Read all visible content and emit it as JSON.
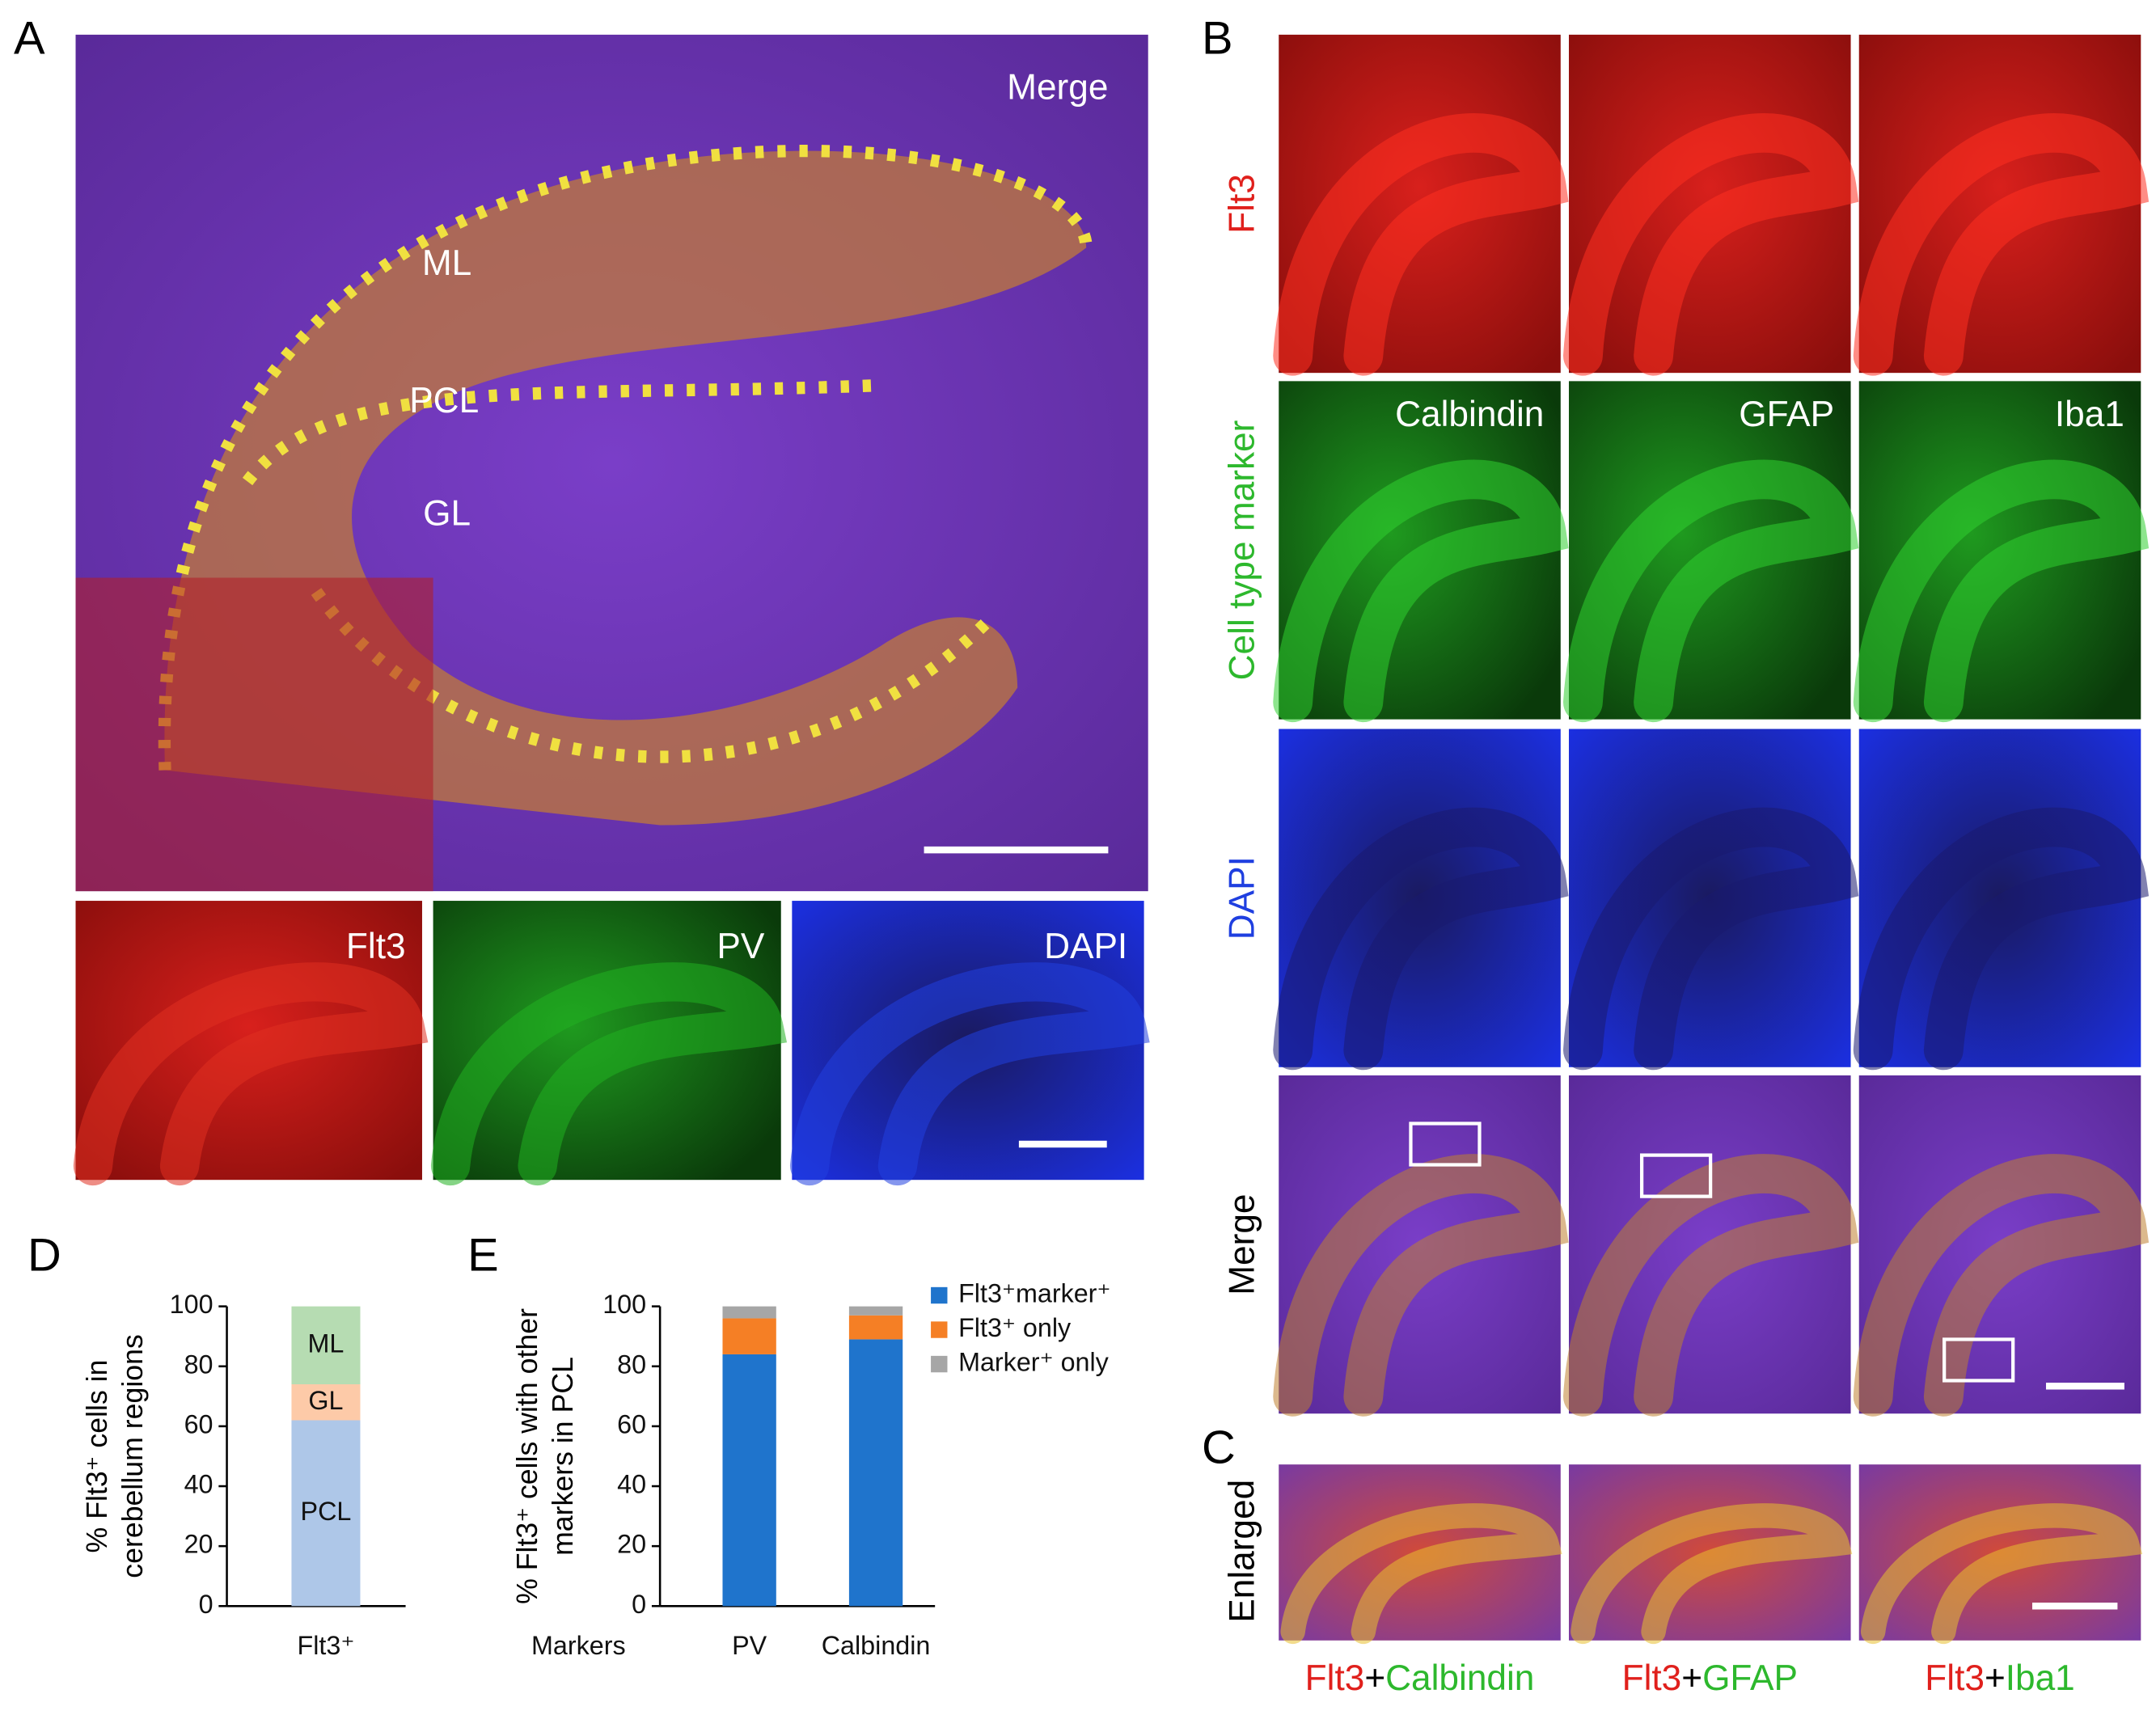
{
  "panel_a": {
    "letter": "A",
    "merge_label": "Merge",
    "layers": [
      "ML",
      "PCL",
      "GL"
    ],
    "channels": [
      "Flt3",
      "PV",
      "DAPI"
    ]
  },
  "panel_b": {
    "letter": "B",
    "rows": [
      "Flt3",
      "Cell type marker",
      "DAPI",
      "Merge"
    ],
    "markers": [
      "Calbindin",
      "GFAP",
      "Iba1"
    ]
  },
  "panel_c": {
    "letter": "C",
    "row_label": "Enlarged",
    "captions": [
      [
        "Flt3",
        "+",
        "Calbindin"
      ],
      [
        "Flt3",
        "+",
        "GFAP"
      ],
      [
        "Flt3",
        "+",
        "Iba1"
      ]
    ]
  },
  "chart_data": [
    {
      "type": "bar",
      "stacked": true,
      "panel": "D",
      "y_label": [
        "% Flt3⁺ cells in",
        "cerebellum regions"
      ],
      "categories": [
        "Flt3⁺"
      ],
      "ylim": [
        0,
        100
      ],
      "yticks": [
        0,
        20,
        40,
        60,
        80,
        100
      ],
      "legend": "inside",
      "series": [
        {
          "name": "PCL",
          "color": "#aec7e8",
          "values": [
            62
          ]
        },
        {
          "name": "GL",
          "color": "#fdcaa8",
          "values": [
            12
          ]
        },
        {
          "name": "ML",
          "color": "#b6dcb2",
          "values": [
            26
          ]
        }
      ]
    },
    {
      "type": "bar",
      "stacked": true,
      "panel": "E",
      "y_label": [
        "% Flt3⁺ cells with other",
        "markers in PCL"
      ],
      "x_label": "Markers",
      "categories": [
        "PV",
        "Calbindin"
      ],
      "ylim": [
        0,
        100
      ],
      "yticks": [
        0,
        20,
        40,
        60,
        80,
        100
      ],
      "legend": "upper right",
      "series": [
        {
          "name": "Flt3⁺marker⁺",
          "color": "#1f74cc",
          "values": [
            84,
            89
          ]
        },
        {
          "name": "Flt3⁺ only",
          "color": "#f57f25",
          "values": [
            12,
            8
          ]
        },
        {
          "name": "Marker⁺ only",
          "color": "#a6a6a6",
          "values": [
            4,
            3
          ]
        }
      ]
    }
  ]
}
